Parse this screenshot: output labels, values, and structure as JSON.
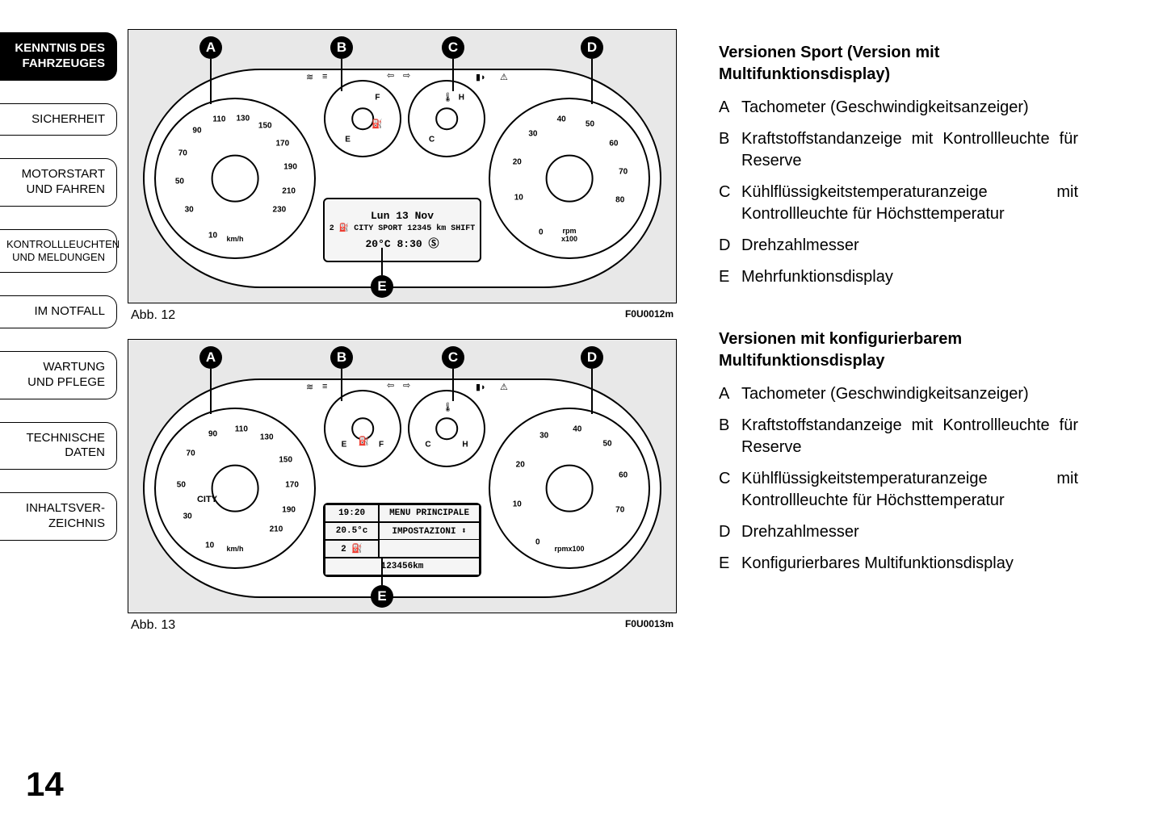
{
  "page_number": "14",
  "tabs": [
    {
      "label": "KENNTNIS DES\nFAHRZEUGES",
      "active": true
    },
    {
      "label": "SICHERHEIT",
      "active": false
    },
    {
      "label": "MOTORSTART\nUND FAHREN",
      "active": false
    },
    {
      "label": "KONTROLLLEUCHTEN\nUND MELDUNGEN",
      "active": false
    },
    {
      "label": "IM NOTFALL",
      "active": false
    },
    {
      "label": "WARTUNG\nUND PFLEGE",
      "active": false
    },
    {
      "label": "TECHNISCHE\nDATEN",
      "active": false
    },
    {
      "label": "INHALTSVER-\nZEICHNIS",
      "active": false
    }
  ],
  "figures": [
    {
      "caption": "Abb. 12",
      "code": "F0U0012m",
      "callouts": [
        "A",
        "B",
        "C",
        "D",
        "E"
      ],
      "speedo": {
        "unit": "km/h",
        "nums": [
          "10",
          "30",
          "50",
          "70",
          "90",
          "110",
          "130",
          "150",
          "170",
          "190",
          "210",
          "230"
        ]
      },
      "tacho": {
        "unit": "rpm\nx100",
        "nums": [
          "0",
          "10",
          "20",
          "30",
          "40",
          "50",
          "60",
          "70",
          "80"
        ]
      },
      "fuel": {
        "letters": [
          "E",
          "F"
        ]
      },
      "temp": {
        "letters": [
          "C",
          "H"
        ]
      },
      "lcd": {
        "type": "simple",
        "lines": [
          "Lun 13 Nov",
          "2 ⛽ CITY SPORT 12345 km  SHIFT",
          "20°C   8:30 Ⓢ"
        ]
      }
    },
    {
      "caption": "Abb. 13",
      "code": "F0U0013m",
      "callouts": [
        "A",
        "B",
        "C",
        "D",
        "E"
      ],
      "speedo": {
        "unit": "km/h",
        "nums": [
          "10",
          "30",
          "50",
          "70",
          "90",
          "110",
          "130",
          "150",
          "170",
          "190",
          "210"
        ]
      },
      "tacho": {
        "unit": "rpmx100",
        "nums": [
          "0",
          "10",
          "20",
          "30",
          "40",
          "50",
          "60",
          "70"
        ]
      },
      "fuel": {
        "letters": [
          "E",
          "F"
        ]
      },
      "temp": {
        "letters": [
          "C",
          "H"
        ]
      },
      "lcd": {
        "type": "grid",
        "left": [
          "19:20",
          "20.5°c",
          "2 ⛽"
        ],
        "right": [
          "MENU PRINCIPALE",
          "IMPOSTAZIONI  ⬍",
          "123456km"
        ]
      }
    }
  ],
  "sections": [
    {
      "title": "Versionen Sport (Version mit Multifunktionsdisplay)",
      "items": [
        {
          "letter": "A",
          "text": "Tachometer (Geschwindigkeitsanzeiger)"
        },
        {
          "letter": "B",
          "text": "Kraftstoffstandanzeige mit Kontrollleuchte für Reserve"
        },
        {
          "letter": "C",
          "text": "Kühlflüssigkeitstemperaturanzeige mit Kontrollleuchte für Höchsttemperatur"
        },
        {
          "letter": "D",
          "text": "Drehzahlmesser"
        },
        {
          "letter": "E",
          "text": "Mehrfunktionsdisplay"
        }
      ]
    },
    {
      "title": "Versionen mit konfigurierbarem Multifunktionsdisplay",
      "items": [
        {
          "letter": "A",
          "text": "Tachometer (Geschwindigkeitsanzeiger)"
        },
        {
          "letter": "B",
          "text": "Kraftstoffstandanzeige mit Kontrollleuchte für Reserve"
        },
        {
          "letter": "C",
          "text": "Kühlflüssigkeitstemperaturanzeige mit Kontrollleuchte für Höchsttemperatur"
        },
        {
          "letter": "D",
          "text": "Drehzahlmesser"
        },
        {
          "letter": "E",
          "text": "Konfigurierbares Multifunktionsdisplay"
        }
      ]
    }
  ],
  "colors": {
    "background": "#ffffff",
    "panel_bg": "#e8e8e8",
    "line": "#000000",
    "tab_active_bg": "#000000",
    "tab_active_fg": "#ffffff"
  }
}
